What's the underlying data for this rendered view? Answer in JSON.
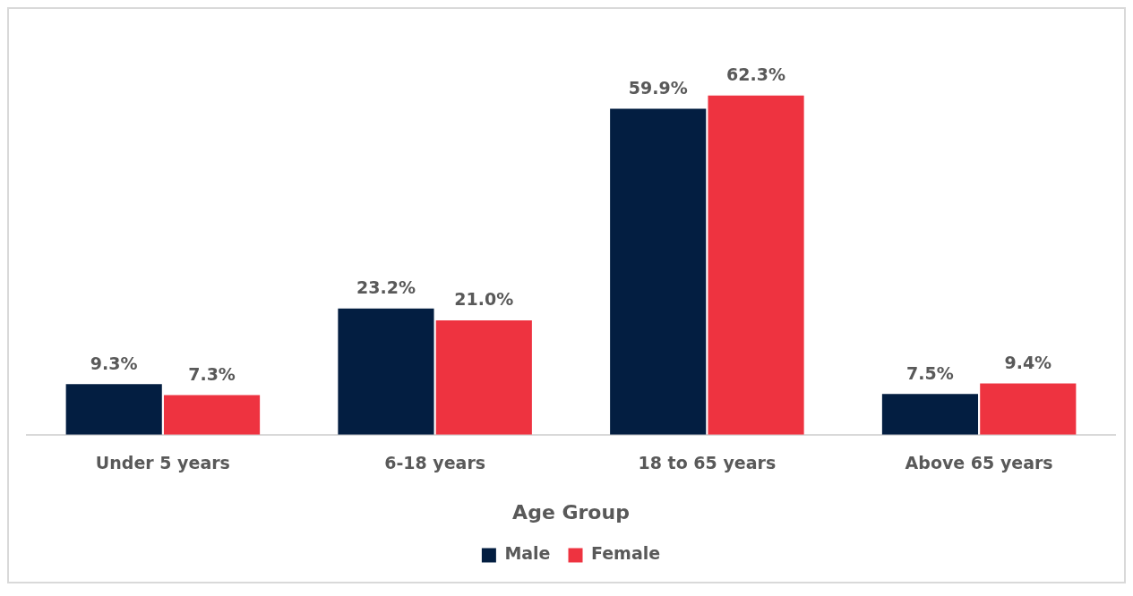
{
  "chart_data": {
    "type": "bar",
    "xlabel": "Age Group",
    "categories": [
      "Under 5 years",
      "6-18 years",
      "18 to 65 years",
      "Above 65 years"
    ],
    "series": [
      {
        "name": "Male",
        "color": "#031e41",
        "values": [
          9.3,
          23.2,
          59.9,
          7.5
        ],
        "value_labels": [
          "9.3%",
          "23.2%",
          "59.9%",
          "7.5%"
        ]
      },
      {
        "name": "Female",
        "color": "#ee3340",
        "values": [
          7.3,
          21.0,
          62.3,
          9.4
        ],
        "value_labels": [
          "7.3%",
          "21.0%",
          "62.3%",
          "9.4%"
        ]
      }
    ],
    "legend": "bottom",
    "grid": false
  }
}
